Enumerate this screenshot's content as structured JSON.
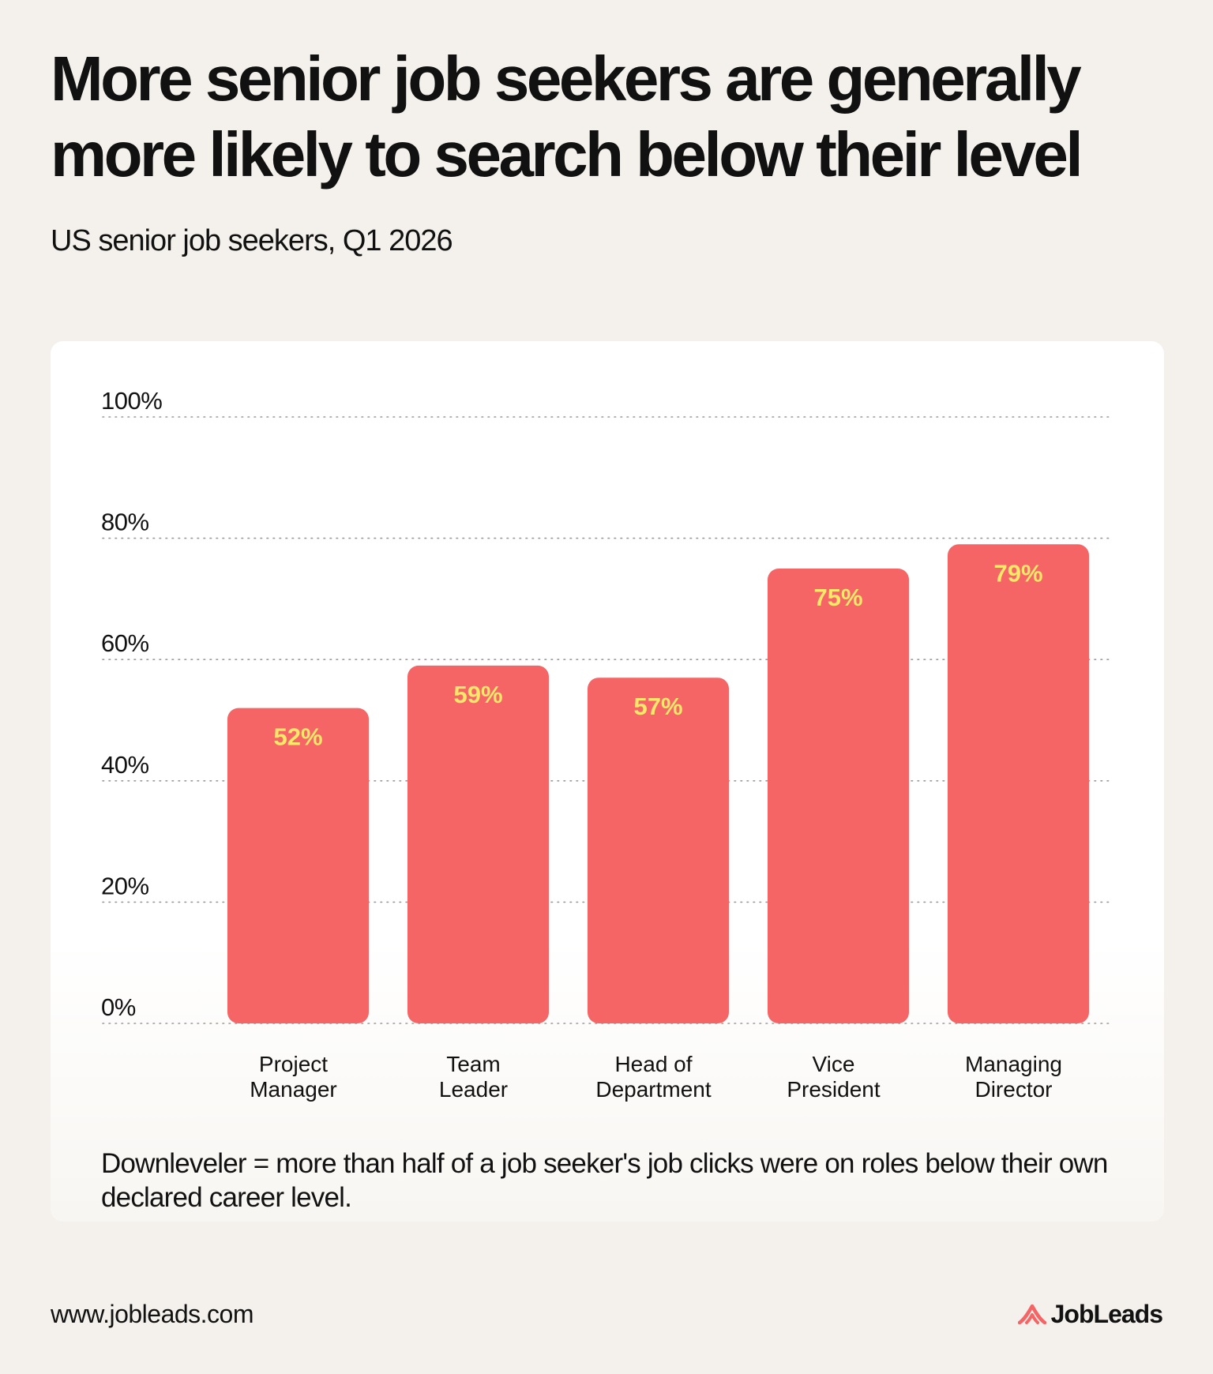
{
  "header": {
    "title": "More senior job seekers are generally more likely to search below their level",
    "subtitle": "US senior job seekers, Q1 2026"
  },
  "chart_data": {
    "type": "bar",
    "categories": [
      [
        "Project",
        "Manager"
      ],
      [
        "Team",
        "Leader"
      ],
      [
        "Head of",
        "Department"
      ],
      [
        "Vice",
        "President"
      ],
      [
        "Managing",
        "Director"
      ]
    ],
    "values": [
      52,
      59,
      57,
      75,
      79
    ],
    "data_labels": [
      "52%",
      "59%",
      "57%",
      "75%",
      "79%"
    ],
    "yticks": [
      0,
      20,
      40,
      60,
      80,
      100
    ],
    "ytick_labels": [
      "0%",
      "20%",
      "40%",
      "60%",
      "80%",
      "100%"
    ],
    "ylim": [
      0,
      100
    ],
    "grid": "dotted-horizontal",
    "legend": "none",
    "colors": {
      "bar": "#f56565",
      "label": "#fde76a",
      "grid": "#9a9a9a",
      "text": "#111111"
    }
  },
  "footnote": "Downleveler = more than half of a job seeker's job clicks were on roles below their own declared career level.",
  "footer": {
    "url": "www.jobleads.com",
    "brand": "JobLeads",
    "logo_icon": "jobleads-logo-icon",
    "logo_color": "#f56565"
  }
}
